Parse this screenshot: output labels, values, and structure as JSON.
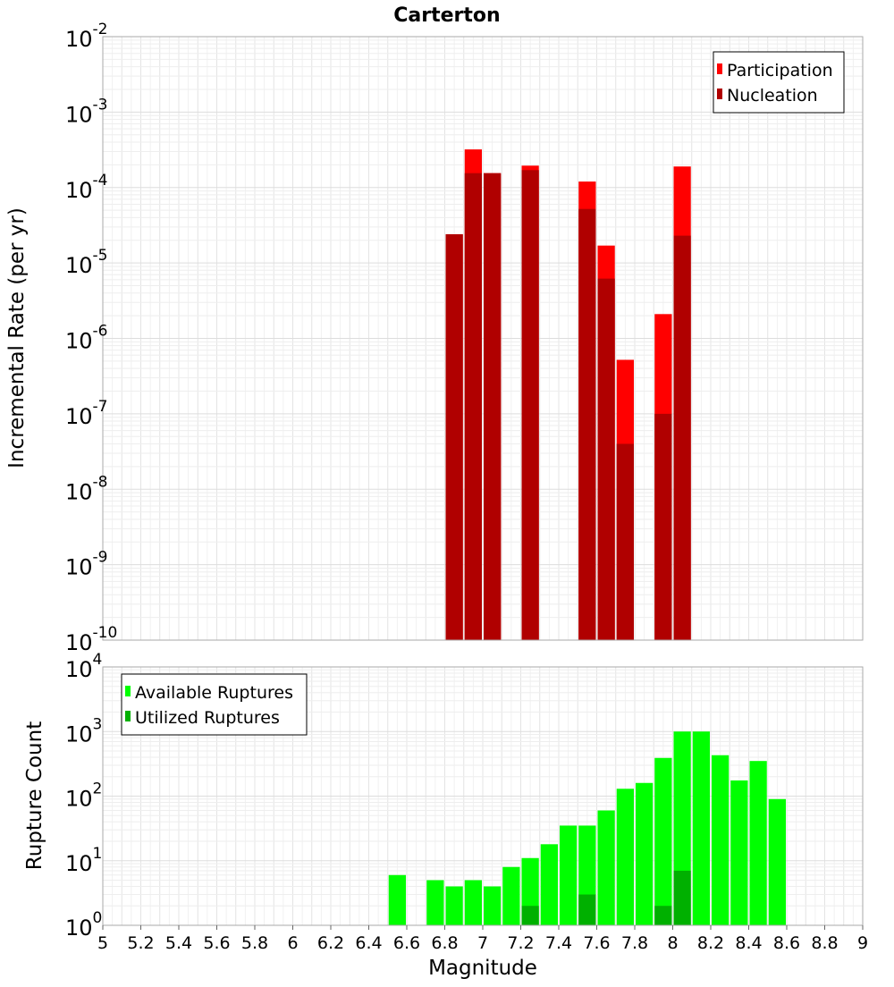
{
  "chart_data": [
    {
      "type": "bar",
      "title": "Carterton",
      "xlabel": "",
      "ylabel": "Incremental Rate (per yr)",
      "yscale": "log",
      "ylim_exponents": [
        -10,
        -2
      ],
      "xlim": [
        5,
        9
      ],
      "grid": true,
      "legend_position": "top-right",
      "series": [
        {
          "name": "Participation",
          "color": "#ff0000",
          "x": [
            6.85,
            6.95,
            7.05,
            7.25,
            7.55,
            7.65,
            7.75,
            7.95,
            8.05
          ],
          "values": [
            2.4e-05,
            0.00032,
            0.000155,
            0.000195,
            0.00012,
            1.7e-05,
            5.2e-07,
            2.1e-06,
            0.00019
          ]
        },
        {
          "name": "Nucleation",
          "color": "#b00000",
          "x": [
            6.85,
            6.95,
            7.05,
            7.25,
            7.55,
            7.65,
            7.75,
            7.95,
            8.05
          ],
          "values": [
            2.4e-05,
            0.000155,
            0.000155,
            0.00017,
            5.2e-05,
            6.2e-06,
            4e-08,
            1e-07,
            2.3e-05
          ]
        }
      ]
    },
    {
      "type": "bar",
      "title": "",
      "xlabel": "Magnitude",
      "ylabel": "Rupture Count",
      "yscale": "log",
      "ylim_exponents": [
        0,
        4
      ],
      "xlim": [
        5,
        9
      ],
      "grid": true,
      "legend_position": "top-left",
      "x_ticks": [
        "5",
        "5.2",
        "5.4",
        "5.6",
        "5.8",
        "6",
        "6.2",
        "6.4",
        "6.6",
        "6.8",
        "7",
        "7.2",
        "7.4",
        "7.6",
        "7.8",
        "8",
        "8.2",
        "8.4",
        "8.6",
        "8.8",
        "9"
      ],
      "series": [
        {
          "name": "Available Ruptures",
          "color": "#00ff00",
          "x": [
            6.55,
            6.75,
            6.85,
            6.95,
            7.05,
            7.15,
            7.25,
            7.35,
            7.45,
            7.55,
            7.65,
            7.75,
            7.85,
            7.95,
            8.05,
            8.15,
            8.25,
            8.35,
            8.45,
            8.55
          ],
          "values": [
            6,
            5,
            4,
            5,
            4,
            8,
            11,
            18,
            35,
            35,
            60,
            130,
            160,
            390,
            1000,
            1000,
            430,
            175,
            350,
            90
          ]
        },
        {
          "name": "Utilized Ruptures",
          "color": "#00b000",
          "x": [
            6.85,
            6.95,
            7.05,
            7.25,
            7.55,
            7.65,
            7.75,
            7.95,
            8.05
          ],
          "values": [
            1,
            1,
            1,
            2,
            3,
            1,
            1,
            2,
            7
          ]
        }
      ]
    }
  ]
}
